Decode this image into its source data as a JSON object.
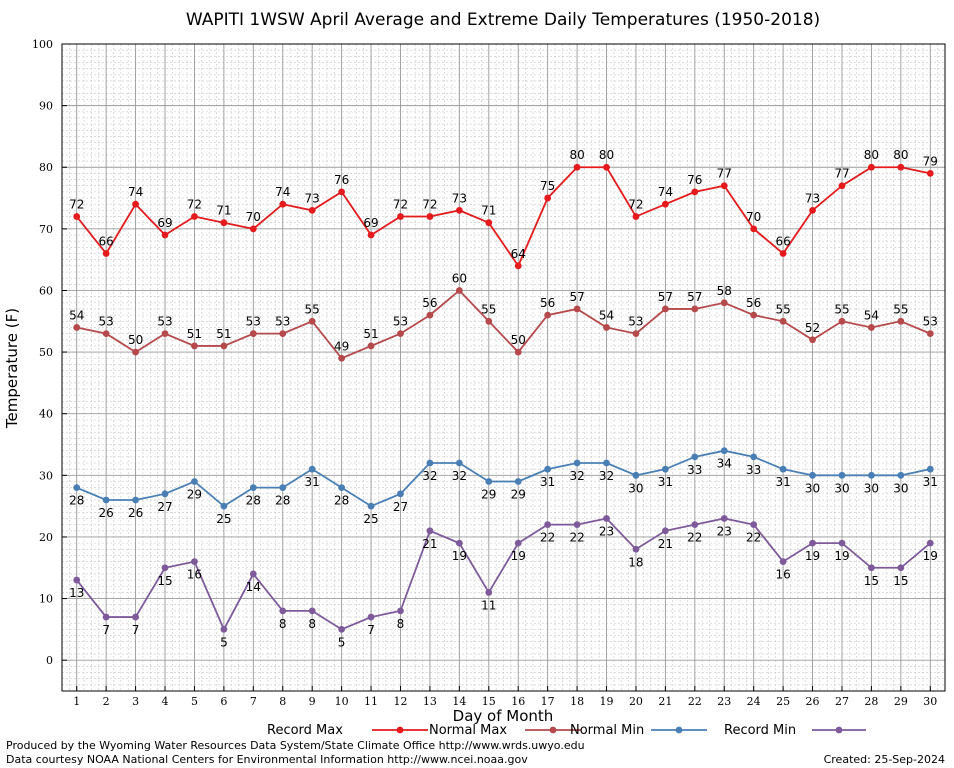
{
  "chart_data": {
    "type": "line",
    "title": "WAPITI 1WSW April Average and Extreme Daily Temperatures (1950-2018)",
    "xlabel": "Day of Month",
    "ylabel": "Temperature (F)",
    "ylim": [
      -5,
      100
    ],
    "yticks": [
      0,
      10,
      20,
      30,
      40,
      50,
      60,
      70,
      80,
      90,
      100
    ],
    "x": [
      1,
      2,
      3,
      4,
      5,
      6,
      7,
      8,
      9,
      10,
      11,
      12,
      13,
      14,
      15,
      16,
      17,
      18,
      19,
      20,
      21,
      22,
      23,
      24,
      25,
      26,
      27,
      28,
      29,
      30
    ],
    "grid": true,
    "legend_position": "bottom",
    "series": [
      {
        "name": "Record Max",
        "color": "#e41a1c",
        "label_position": "above",
        "values": [
          72,
          66,
          74,
          69,
          72,
          71,
          70,
          74,
          73,
          76,
          69,
          72,
          72,
          73,
          71,
          64,
          75,
          80,
          80,
          72,
          74,
          76,
          77,
          70,
          66,
          73,
          77,
          80,
          80,
          79
        ]
      },
      {
        "name": "Normal Max",
        "color": "#b5494b",
        "label_position": "above",
        "values": [
          54,
          53,
          50,
          53,
          51,
          51,
          53,
          53,
          55,
          49,
          51,
          53,
          56,
          60,
          55,
          50,
          56,
          57,
          54,
          53,
          57,
          57,
          58,
          56,
          55,
          52,
          55,
          54,
          55,
          53
        ]
      },
      {
        "name": "Normal Min",
        "color": "#4a7fb5",
        "label_position": "below",
        "values": [
          28,
          26,
          26,
          27,
          29,
          25,
          28,
          28,
          31,
          28,
          25,
          27,
          32,
          32,
          29,
          29,
          31,
          32,
          32,
          30,
          31,
          33,
          34,
          33,
          31,
          30,
          30,
          30,
          30,
          31
        ]
      },
      {
        "name": "Record Min",
        "color": "#7e5a9b",
        "label_position": "below",
        "values": [
          13,
          7,
          7,
          15,
          16,
          5,
          14,
          8,
          8,
          5,
          7,
          8,
          21,
          19,
          11,
          19,
          22,
          22,
          23,
          18,
          21,
          22,
          23,
          22,
          16,
          19,
          19,
          15,
          15,
          19
        ]
      }
    ]
  },
  "footer": {
    "produced_by": "Produced by the Wyoming Water Resources Data System/State Climate Office http://www.wrds.uwyo.edu",
    "courtesy": "Data courtesy NOAA National Centers for Environmental Information http://www.ncei.noaa.gov",
    "created": "Created:  25-Sep-2024"
  }
}
